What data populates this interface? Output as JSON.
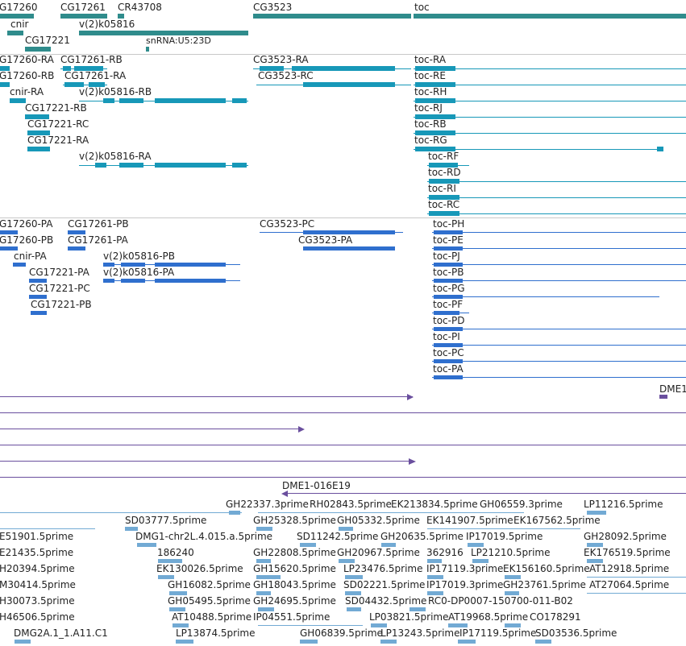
{
  "colors": {
    "gene": "#2f8c8c",
    "transcript": "#1798b8",
    "protein": "#2f6fce",
    "purple": "#6a4f9e",
    "est": "#72aad4",
    "separator": "#c8c8c8",
    "text": "#222222"
  },
  "genes": {
    "g17260": "G17260",
    "cnir": "cnir",
    "cg17221": "CG17221",
    "cg17261": "CG17261",
    "k05816": "v(2)k05816",
    "cr43708": "CR43708",
    "snrna": "snRNA:U5:23D",
    "cg3523": "CG3523",
    "toc": "toc"
  },
  "transcripts": {
    "t1": "G17260-RA",
    "t2": "G17260-RB",
    "t3": "cnir-RA",
    "t4": "CG17261-RB",
    "t5": "CG17261-RA",
    "t6": "v(2)k05816-RB",
    "t7": "CG17221-RB",
    "t8": "CG17221-RC",
    "t9": "CG17221-RA",
    "t10": "v(2)k05816-RA",
    "t11": "CG3523-RA",
    "t12": "CG3523-RC",
    "t13": "toc-RA",
    "t14": "toc-RE",
    "t15": "toc-RH",
    "t16": "toc-RJ",
    "t17": "toc-RB",
    "t18": "toc-RG",
    "t19": "toc-RF",
    "t20": "toc-RD",
    "t21": "toc-RI",
    "t22": "toc-RC"
  },
  "proteins": {
    "p1": "G17260-PA",
    "p2": "G17260-PB",
    "p3": "cnir-PA",
    "p4": "CG17261-PB",
    "p5": "CG17261-PA",
    "p6": "v(2)k05816-PB",
    "p7": "v(2)k05816-PA",
    "p8": "CG17221-PA",
    "p9": "CG17221-PC",
    "p10": "CG17221-PB",
    "p11": "CG3523-PC",
    "p12": "CG3523-PA",
    "p13": "toc-PH",
    "p14": "toc-PE",
    "p15": "toc-PJ",
    "p16": "toc-PB",
    "p17": "toc-PG",
    "p18": "toc-PF",
    "p19": "toc-PD",
    "p20": "toc-PI",
    "p21": "toc-PC",
    "p22": "toc-PA"
  },
  "clones": {
    "dme1_top": "DME1",
    "dme1_016": "DME1-016E19"
  },
  "ests": {
    "e1": "GH22337.3prime",
    "e2": "RH02843.5prime",
    "e3": "EK213834.5prime",
    "e4": "GH06559.3prime",
    "e5": "LP11216.5prime",
    "e6": "SD03777.5prime",
    "e7": "GH25328.5prime",
    "e8": "GH05332.5prime",
    "e9": "EK141907.5prime",
    "e10": "EK167562.5prime",
    "e11": "E51901.5prime",
    "e12": "DMG1-chr2L.4.015.a.5prime",
    "e13": "SD11242.5prime",
    "e14": "GH20635.5prime",
    "e15": "IP17019.5prime",
    "e16": "GH28092.5prime",
    "e17": "E21435.5prime",
    "e18": "186240",
    "e19": "GH22808.5prime",
    "e20": "GH20967.5prime",
    "e21": "362916",
    "e22": "LP21210.5prime",
    "e23": "EK176519.5prime",
    "e24": "H20394.5prime",
    "e25": "EK130026.5prime",
    "e26": "GH15620.5prime",
    "e27": "LP23476.5prime",
    "e28": "IP17119.3prime",
    "e29": "EK156160.5prime",
    "e30": "AT12918.5prime",
    "e31": "M30414.5prime",
    "e32": "GH16082.5prime",
    "e33": "GH18043.5prime",
    "e34": "SD02221.5prime",
    "e35": "IP17019.3prime",
    "e36": "GH23761.5prime",
    "e37": "AT27064.5prime",
    "e38": "H30073.5prime",
    "e39": "GH05495.5prime",
    "e40": "GH24695.5prime",
    "e41": "SD04432.5prime",
    "e42": "RC0-DP0007-150700-011-B02",
    "e43": "H46506.5prime",
    "e44": "AT10488.5prime",
    "e45": "IP04551.5prime",
    "e46": "LP03821.5prime",
    "e47": "AT19968.5prime",
    "e48": "CO178291",
    "e49": "DMG2A.1_1.A11.C1",
    "e50": "LP13874.5prime",
    "e51": "GH06839.5prime",
    "e52": "LP13243.5prime",
    "e53": "IP17119.5prime",
    "e54": "SD03536.5prime"
  }
}
